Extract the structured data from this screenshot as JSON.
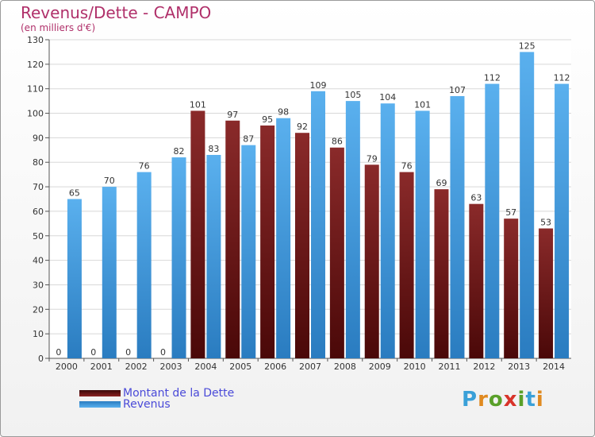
{
  "header": {
    "title": "Revenus/Dette - CAMPO",
    "subtitle": "(en milliers d'€)"
  },
  "colors": {
    "dette": "#7a1a1a",
    "revenus": "#4aa3e6",
    "title": "#b0306a",
    "legend_text": "#4a4ad8"
  },
  "legend": {
    "dette_label": "Montant de la Dette",
    "revenus_label": "Revenus"
  },
  "logo": {
    "text": "Proxiti"
  },
  "chart_data": {
    "type": "bar",
    "title": "Revenus/Dette - CAMPO",
    "subtitle": "(en milliers d'€)",
    "xlabel": "",
    "ylabel": "",
    "ylim": [
      0,
      130
    ],
    "yticks": [
      0,
      10,
      20,
      30,
      40,
      50,
      60,
      70,
      80,
      90,
      100,
      110,
      120,
      130
    ],
    "grid": true,
    "legend_position": "bottom-left",
    "categories": [
      "2000",
      "2001",
      "2002",
      "2003",
      "2004",
      "2005",
      "2006",
      "2007",
      "2008",
      "2009",
      "2010",
      "2011",
      "2012",
      "2013",
      "2014"
    ],
    "series": [
      {
        "name": "Montant de la Dette",
        "color": "#7a1a1a",
        "values": [
          0,
          0,
          0,
          0,
          101,
          97,
          95,
          92,
          86,
          79,
          76,
          69,
          63,
          57,
          53
        ]
      },
      {
        "name": "Revenus",
        "color": "#4aa3e6",
        "values": [
          65,
          70,
          76,
          82,
          83,
          87,
          98,
          109,
          105,
          104,
          101,
          107,
          112,
          125,
          112
        ]
      }
    ]
  }
}
